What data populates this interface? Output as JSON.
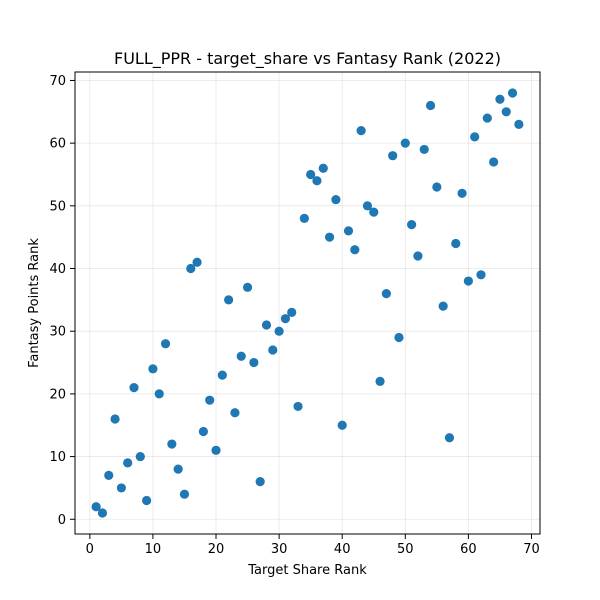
{
  "chart_data": {
    "type": "scatter",
    "title": "FULL_PPR - target_share vs Fantasy Rank (2022)",
    "xlabel": "Target Share Rank",
    "ylabel": "Fantasy Points Rank",
    "xlim": [
      -2.35,
      71.35
    ],
    "ylim": [
      -2.35,
      71.35
    ],
    "xticks": [
      0,
      10,
      20,
      30,
      40,
      50,
      60,
      70
    ],
    "yticks": [
      0,
      10,
      20,
      30,
      40,
      50,
      60,
      70
    ],
    "grid": true,
    "marker_color": "#1f77b4",
    "points": [
      {
        "x": 1,
        "y": 2
      },
      {
        "x": 2,
        "y": 1
      },
      {
        "x": 3,
        "y": 7
      },
      {
        "x": 4,
        "y": 16
      },
      {
        "x": 5,
        "y": 5
      },
      {
        "x": 6,
        "y": 9
      },
      {
        "x": 7,
        "y": 21
      },
      {
        "x": 8,
        "y": 10
      },
      {
        "x": 9,
        "y": 3
      },
      {
        "x": 10,
        "y": 24
      },
      {
        "x": 11,
        "y": 20
      },
      {
        "x": 12,
        "y": 28
      },
      {
        "x": 13,
        "y": 12
      },
      {
        "x": 14,
        "y": 8
      },
      {
        "x": 15,
        "y": 4
      },
      {
        "x": 16,
        "y": 40
      },
      {
        "x": 17,
        "y": 41
      },
      {
        "x": 18,
        "y": 14
      },
      {
        "x": 19,
        "y": 19
      },
      {
        "x": 20,
        "y": 11
      },
      {
        "x": 21,
        "y": 23
      },
      {
        "x": 22,
        "y": 35
      },
      {
        "x": 23,
        "y": 17
      },
      {
        "x": 24,
        "y": 26
      },
      {
        "x": 25,
        "y": 37
      },
      {
        "x": 26,
        "y": 25
      },
      {
        "x": 27,
        "y": 6
      },
      {
        "x": 28,
        "y": 31
      },
      {
        "x": 29,
        "y": 27
      },
      {
        "x": 30,
        "y": 30
      },
      {
        "x": 31,
        "y": 32
      },
      {
        "x": 32,
        "y": 33
      },
      {
        "x": 33,
        "y": 18
      },
      {
        "x": 34,
        "y": 48
      },
      {
        "x": 35,
        "y": 55
      },
      {
        "x": 36,
        "y": 54
      },
      {
        "x": 37,
        "y": 56
      },
      {
        "x": 38,
        "y": 45
      },
      {
        "x": 39,
        "y": 51
      },
      {
        "x": 40,
        "y": 15
      },
      {
        "x": 41,
        "y": 46
      },
      {
        "x": 42,
        "y": 43
      },
      {
        "x": 43,
        "y": 62
      },
      {
        "x": 44,
        "y": 50
      },
      {
        "x": 45,
        "y": 49
      },
      {
        "x": 46,
        "y": 22
      },
      {
        "x": 47,
        "y": 36
      },
      {
        "x": 48,
        "y": 58
      },
      {
        "x": 49,
        "y": 29
      },
      {
        "x": 50,
        "y": 60
      },
      {
        "x": 51,
        "y": 47
      },
      {
        "x": 52,
        "y": 42
      },
      {
        "x": 53,
        "y": 59
      },
      {
        "x": 54,
        "y": 66
      },
      {
        "x": 55,
        "y": 53
      },
      {
        "x": 56,
        "y": 34
      },
      {
        "x": 57,
        "y": 13
      },
      {
        "x": 58,
        "y": 44
      },
      {
        "x": 59,
        "y": 52
      },
      {
        "x": 60,
        "y": 38
      },
      {
        "x": 61,
        "y": 61
      },
      {
        "x": 62,
        "y": 39
      },
      {
        "x": 63,
        "y": 64
      },
      {
        "x": 64,
        "y": 57
      },
      {
        "x": 65,
        "y": 67
      },
      {
        "x": 66,
        "y": 65
      },
      {
        "x": 67,
        "y": 68
      },
      {
        "x": 68,
        "y": 63
      }
    ]
  }
}
